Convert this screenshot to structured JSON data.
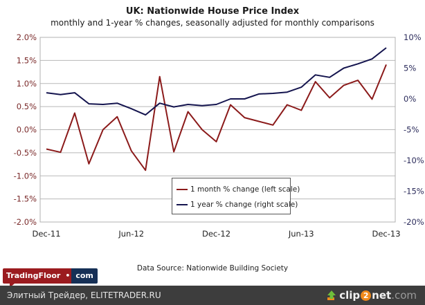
{
  "chart_data": {
    "type": "line",
    "title": "UK: Nationwide House Price Index",
    "subtitle": "monthly and 1-year % changes, seasonally adjusted for monthly comparisons",
    "x": [
      "Dec-11",
      "Jan-12",
      "Feb-12",
      "Mar-12",
      "Apr-12",
      "May-12",
      "Jun-12",
      "Jul-12",
      "Aug-12",
      "Sep-12",
      "Oct-12",
      "Nov-12",
      "Dec-12",
      "Jan-13",
      "Feb-13",
      "Mar-13",
      "Apr-13",
      "May-13",
      "Jun-13",
      "Jul-13",
      "Aug-13",
      "Sep-13",
      "Oct-13",
      "Nov-13",
      "Dec-13"
    ],
    "xticks": [
      "Dec-11",
      "Jun-12",
      "Dec-12",
      "Jun-13",
      "Dec-13"
    ],
    "xtick_indices": [
      0,
      6,
      12,
      18,
      24
    ],
    "series": [
      {
        "name": "1 month % change (left scale)",
        "axis": "left",
        "color": "#8b1a1a",
        "values": [
          -0.42,
          -0.49,
          0.36,
          -0.74,
          0.0,
          0.28,
          -0.46,
          -0.88,
          1.15,
          -0.48,
          0.39,
          0.0,
          -0.26,
          0.54,
          0.26,
          0.18,
          0.1,
          0.54,
          0.42,
          1.04,
          0.69,
          0.96,
          1.07,
          0.66,
          1.41
        ]
      },
      {
        "name": "1 year % change (right scale)",
        "axis": "right",
        "color": "#14144e",
        "values": [
          1.0,
          0.7,
          1.0,
          -0.8,
          -0.9,
          -0.7,
          -1.6,
          -2.6,
          -0.7,
          -1.3,
          -0.9,
          -1.1,
          -0.9,
          0.0,
          0.0,
          0.8,
          0.9,
          1.1,
          1.9,
          3.9,
          3.5,
          5.0,
          5.7,
          6.5,
          8.3
        ]
      }
    ],
    "left_axis": {
      "ylim": [
        -2.0,
        2.0
      ],
      "ticks": [
        "2.0%",
        "1.5%",
        "1.0%",
        "0.5%",
        "0.0%",
        "-0.5%",
        "-1.0%",
        "-1.5%",
        "-2.0%"
      ],
      "tick_values": [
        2.0,
        1.5,
        1.0,
        0.5,
        0.0,
        -0.5,
        -1.0,
        -1.5,
        -2.0
      ]
    },
    "right_axis": {
      "ylim": [
        -20,
        10
      ],
      "ticks": [
        "10%",
        "5%",
        "0%",
        "-5%",
        "-10%",
        "-15%",
        "-20%"
      ],
      "tick_values": [
        10,
        5,
        0,
        -5,
        -10,
        -15,
        -20
      ]
    },
    "grid": true,
    "legend_position": "bottom-center",
    "source": "Data Source: Nationwide Building Society"
  },
  "branding": {
    "logo_left": "TradingFloor",
    "logo_dot": "•",
    "logo_right": "com",
    "footer_text": "Элитный Трейдер, ELITETRADER.RU",
    "clip_pre": "clip",
    "clip_num": "2",
    "clip_post": "net",
    "clip_domain": ".com"
  }
}
